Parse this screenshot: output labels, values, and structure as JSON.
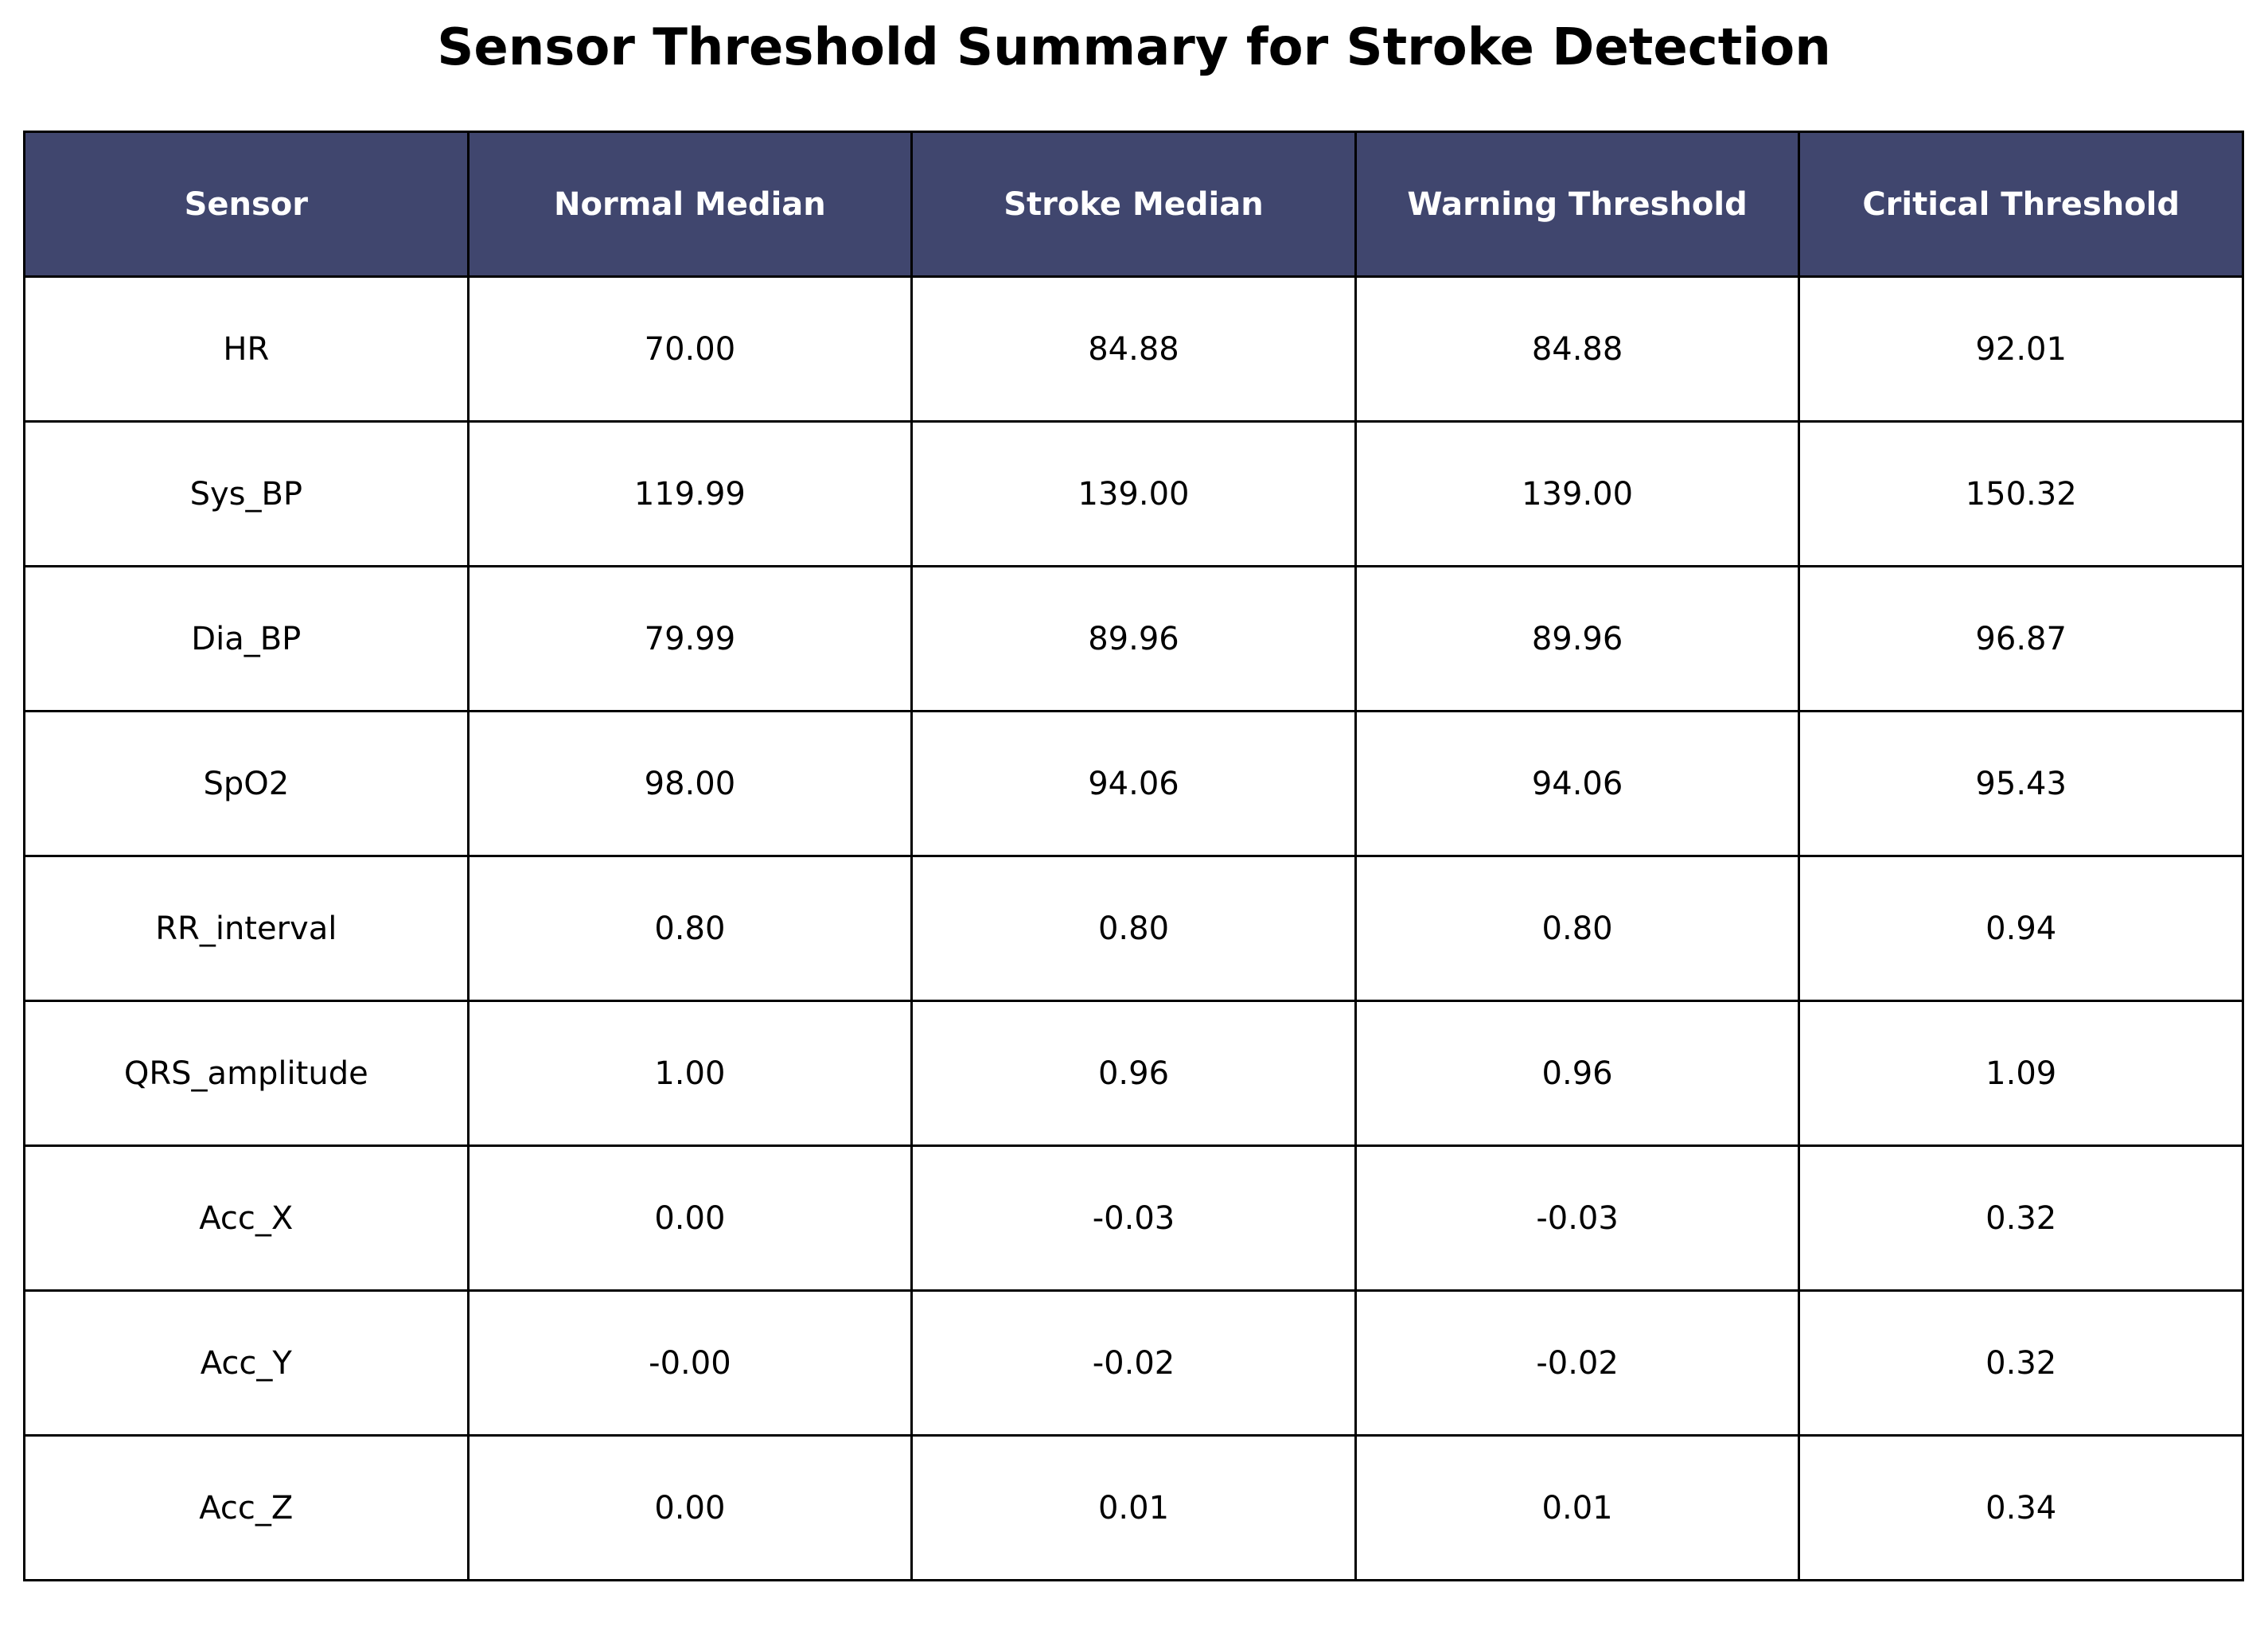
{
  "chart_data": {
    "type": "table",
    "title": "Sensor Threshold Summary for Stroke Detection",
    "columns": [
      "Sensor",
      "Normal Median",
      "Stroke Median",
      "Warning Threshold",
      "Critical Threshold"
    ],
    "rows": [
      [
        "HR",
        "70.00",
        "84.88",
        "84.88",
        "92.01"
      ],
      [
        "Sys_BP",
        "119.99",
        "139.00",
        "139.00",
        "150.32"
      ],
      [
        "Dia_BP",
        "79.99",
        "89.96",
        "89.96",
        "96.87"
      ],
      [
        "SpO2",
        "98.00",
        "94.06",
        "94.06",
        "95.43"
      ],
      [
        "RR_interval",
        "0.80",
        "0.80",
        "0.80",
        "0.94"
      ],
      [
        "QRS_amplitude",
        "1.00",
        "0.96",
        "0.96",
        "1.09"
      ],
      [
        "Acc_X",
        "0.00",
        "-0.03",
        "-0.03",
        "0.32"
      ],
      [
        "Acc_Y",
        "-0.00",
        "-0.02",
        "-0.02",
        "0.32"
      ],
      [
        "Acc_Z",
        "0.00",
        "0.01",
        "0.01",
        "0.34"
      ]
    ],
    "colors": {
      "header_background": "#40466e",
      "header_text": "#ffffff",
      "cell_background": "#ffffff",
      "border": "#000000"
    }
  }
}
